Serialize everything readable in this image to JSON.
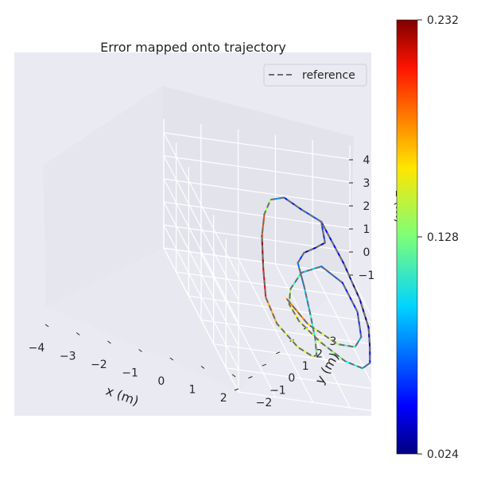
{
  "chart_data": {
    "type": "line",
    "projection": "3d",
    "title": "Error mapped onto trajectory",
    "xlabel": "x (m)",
    "ylabel": "y (m)",
    "zlabel": "z (m)",
    "x_ticks": [
      "−4",
      "−3",
      "−2",
      "−1",
      "0",
      "1",
      "2"
    ],
    "y_ticks": [
      "−2",
      "−1",
      "0",
      "1",
      "2",
      "3"
    ],
    "z_ticks": [
      "−1",
      "0",
      "1",
      "2",
      "3",
      "4"
    ],
    "xlim": [
      -4,
      2
    ],
    "ylim": [
      -2,
      3
    ],
    "zlim": [
      -1,
      4
    ],
    "legend": {
      "entries": [
        "reference"
      ],
      "placement": "top-right"
    },
    "colorbar": {
      "colormap": "jet",
      "min": 0.024,
      "max": 0.232,
      "ticks": [
        "0.024",
        "0.128",
        "0.232"
      ]
    },
    "series": [
      {
        "name": "reference",
        "style": "dashed",
        "color": "#6e6e6e",
        "points": [
          [
            -3.9,
            -1.2,
            1.2
          ],
          [
            -3.7,
            -0.6,
            1.8
          ],
          [
            -3.3,
            0.0,
            2.6
          ],
          [
            -2.6,
            0.6,
            3.1
          ],
          [
            -1.6,
            1.1,
            3.4
          ],
          [
            -0.6,
            1.5,
            3.4
          ],
          [
            0.4,
            1.8,
            3.0
          ],
          [
            1.2,
            2.0,
            2.5
          ],
          [
            1.8,
            1.9,
            2.0
          ],
          [
            2.0,
            1.4,
            1.3
          ],
          [
            1.7,
            0.9,
            0.7
          ],
          [
            1.1,
            0.6,
            0.2
          ],
          [
            0.4,
            0.4,
            0.2
          ],
          [
            -0.3,
            0.3,
            0.6
          ],
          [
            -1.1,
            0.2,
            1.0
          ],
          [
            -1.9,
            0.1,
            1.2
          ],
          [
            -2.6,
            -0.3,
            1.0
          ],
          [
            -3.2,
            -0.8,
            0.7
          ],
          [
            -3.6,
            -1.2,
            0.6
          ],
          [
            -3.9,
            -1.2,
            1.2
          ],
          [
            -3.0,
            -1.5,
            0.4
          ],
          [
            -2.0,
            -1.6,
            -0.1
          ],
          [
            -1.0,
            -1.5,
            -0.3
          ],
          [
            0.0,
            -1.2,
            -0.2
          ],
          [
            0.9,
            -0.9,
            0.0
          ],
          [
            1.5,
            -0.5,
            0.3
          ],
          [
            1.6,
            0.0,
            0.6
          ],
          [
            1.1,
            0.5,
            0.8
          ],
          [
            0.3,
            0.8,
            0.8
          ],
          [
            -0.5,
            0.8,
            0.7
          ],
          [
            -1.3,
            0.5,
            0.6
          ],
          [
            -1.9,
            0.0,
            0.8
          ],
          [
            -2.1,
            -0.6,
            1.0
          ],
          [
            -1.6,
            -1.0,
            0.9
          ],
          [
            -0.7,
            -1.1,
            0.6
          ],
          [
            0.2,
            -0.9,
            0.4
          ],
          [
            0.9,
            -0.5,
            0.6
          ],
          [
            1.3,
            0.1,
            1.0
          ],
          [
            1.0,
            0.8,
            1.4
          ],
          [
            0.2,
            1.1,
            1.6
          ]
        ]
      },
      {
        "name": "",
        "style": "solid",
        "colored_by": "error",
        "points": [
          [
            -3.9,
            -1.2,
            1.2,
            0.07
          ],
          [
            -3.7,
            -0.6,
            1.8,
            0.06
          ],
          [
            -3.3,
            0.0,
            2.6,
            0.05
          ],
          [
            -2.6,
            0.6,
            3.1,
            0.11
          ],
          [
            -1.6,
            1.1,
            3.4,
            0.16
          ],
          [
            -0.6,
            1.5,
            3.4,
            0.22
          ],
          [
            0.4,
            1.8,
            3.0,
            0.23
          ],
          [
            1.2,
            2.0,
            2.5,
            0.19
          ],
          [
            1.8,
            1.9,
            2.0,
            0.15
          ],
          [
            2.0,
            1.4,
            1.3,
            0.14
          ],
          [
            1.7,
            0.9,
            0.7,
            0.15
          ],
          [
            1.1,
            0.6,
            0.2,
            0.13
          ],
          [
            0.4,
            0.4,
            0.2,
            0.12
          ],
          [
            -0.3,
            0.3,
            0.6,
            0.1
          ],
          [
            -1.1,
            0.2,
            1.0,
            0.08
          ],
          [
            -1.9,
            0.1,
            1.2,
            0.07
          ],
          [
            -2.6,
            -0.3,
            1.0,
            0.05
          ],
          [
            -3.2,
            -0.8,
            0.7,
            0.04
          ],
          [
            -3.6,
            -1.2,
            0.6,
            0.05
          ],
          [
            -3.9,
            -1.2,
            1.2,
            0.07
          ],
          [
            -3.0,
            -1.5,
            0.4,
            0.03
          ],
          [
            -2.0,
            -1.6,
            -0.1,
            0.03
          ],
          [
            -1.0,
            -1.5,
            -0.3,
            0.03
          ],
          [
            0.0,
            -1.2,
            -0.2,
            0.04
          ],
          [
            0.9,
            -0.9,
            0.0,
            0.06
          ],
          [
            1.5,
            -0.5,
            0.3,
            0.09
          ],
          [
            1.6,
            0.0,
            0.6,
            0.12
          ],
          [
            1.1,
            0.5,
            0.8,
            0.14
          ],
          [
            0.3,
            0.8,
            0.8,
            0.16
          ],
          [
            -0.5,
            0.8,
            0.7,
            0.15
          ],
          [
            -1.3,
            0.5,
            0.6,
            0.12
          ],
          [
            -1.9,
            0.0,
            0.8,
            0.1
          ],
          [
            -2.1,
            -0.6,
            1.0,
            0.08
          ],
          [
            -1.6,
            -1.0,
            0.9,
            0.06
          ],
          [
            -0.7,
            -1.1,
            0.6,
            0.05
          ],
          [
            0.2,
            -0.9,
            0.4,
            0.07
          ],
          [
            0.9,
            -0.5,
            0.6,
            0.1
          ],
          [
            1.3,
            0.1,
            1.0,
            0.13
          ],
          [
            1.0,
            0.8,
            1.4,
            0.16
          ],
          [
            0.2,
            1.1,
            1.6,
            0.2
          ]
        ]
      }
    ]
  }
}
